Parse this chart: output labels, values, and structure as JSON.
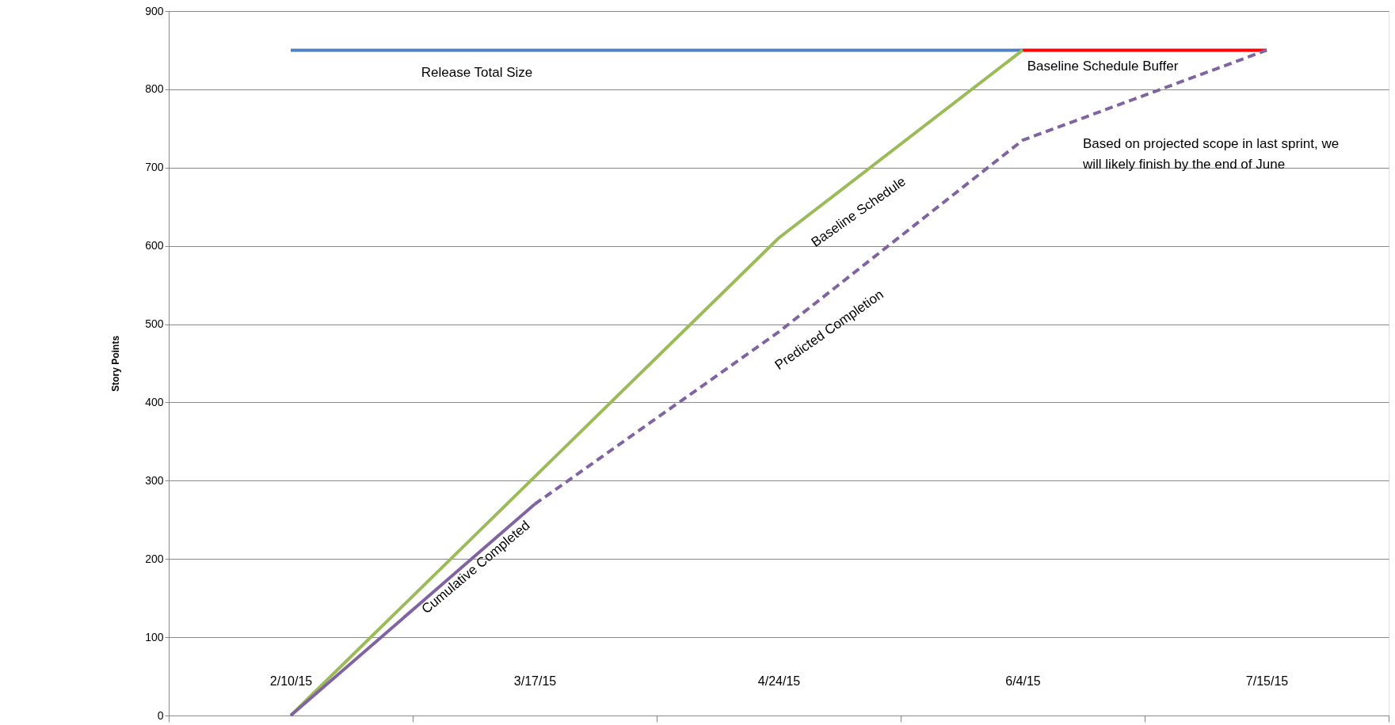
{
  "chart_data": {
    "type": "line",
    "ylabel": "Story Points",
    "categories": [
      "2/10/15",
      "3/17/15",
      "4/24/15",
      "6/4/15",
      "7/15/15"
    ],
    "series": [
      {
        "name": "Release Total Size",
        "color": "#4f81bd",
        "values": [
          850,
          850,
          850,
          850,
          null
        ]
      },
      {
        "name": "Baseline Schedule Buffer",
        "color": "#ff0000",
        "values": [
          null,
          null,
          null,
          850,
          850
        ]
      },
      {
        "name": "Baseline Schedule",
        "color": "#9bbb59",
        "values": [
          0,
          305,
          610,
          850,
          null
        ]
      },
      {
        "name": "Cumulative Completed",
        "color": "#8064a2",
        "values": [
          0,
          270,
          null,
          null,
          null
        ]
      },
      {
        "name": "Predicted Completion",
        "color": "#8064a2",
        "line_style": "dashed",
        "values": [
          null,
          270,
          490,
          735,
          850
        ]
      }
    ],
    "annotations": [
      "Based on projected scope in last sprint, we\nwill likely finish by the end of June"
    ],
    "ylim": [
      0,
      900
    ],
    "yticks": [
      0,
      100,
      200,
      300,
      400,
      500,
      600,
      700,
      800,
      900
    ],
    "grid": "y",
    "marker": "none"
  }
}
